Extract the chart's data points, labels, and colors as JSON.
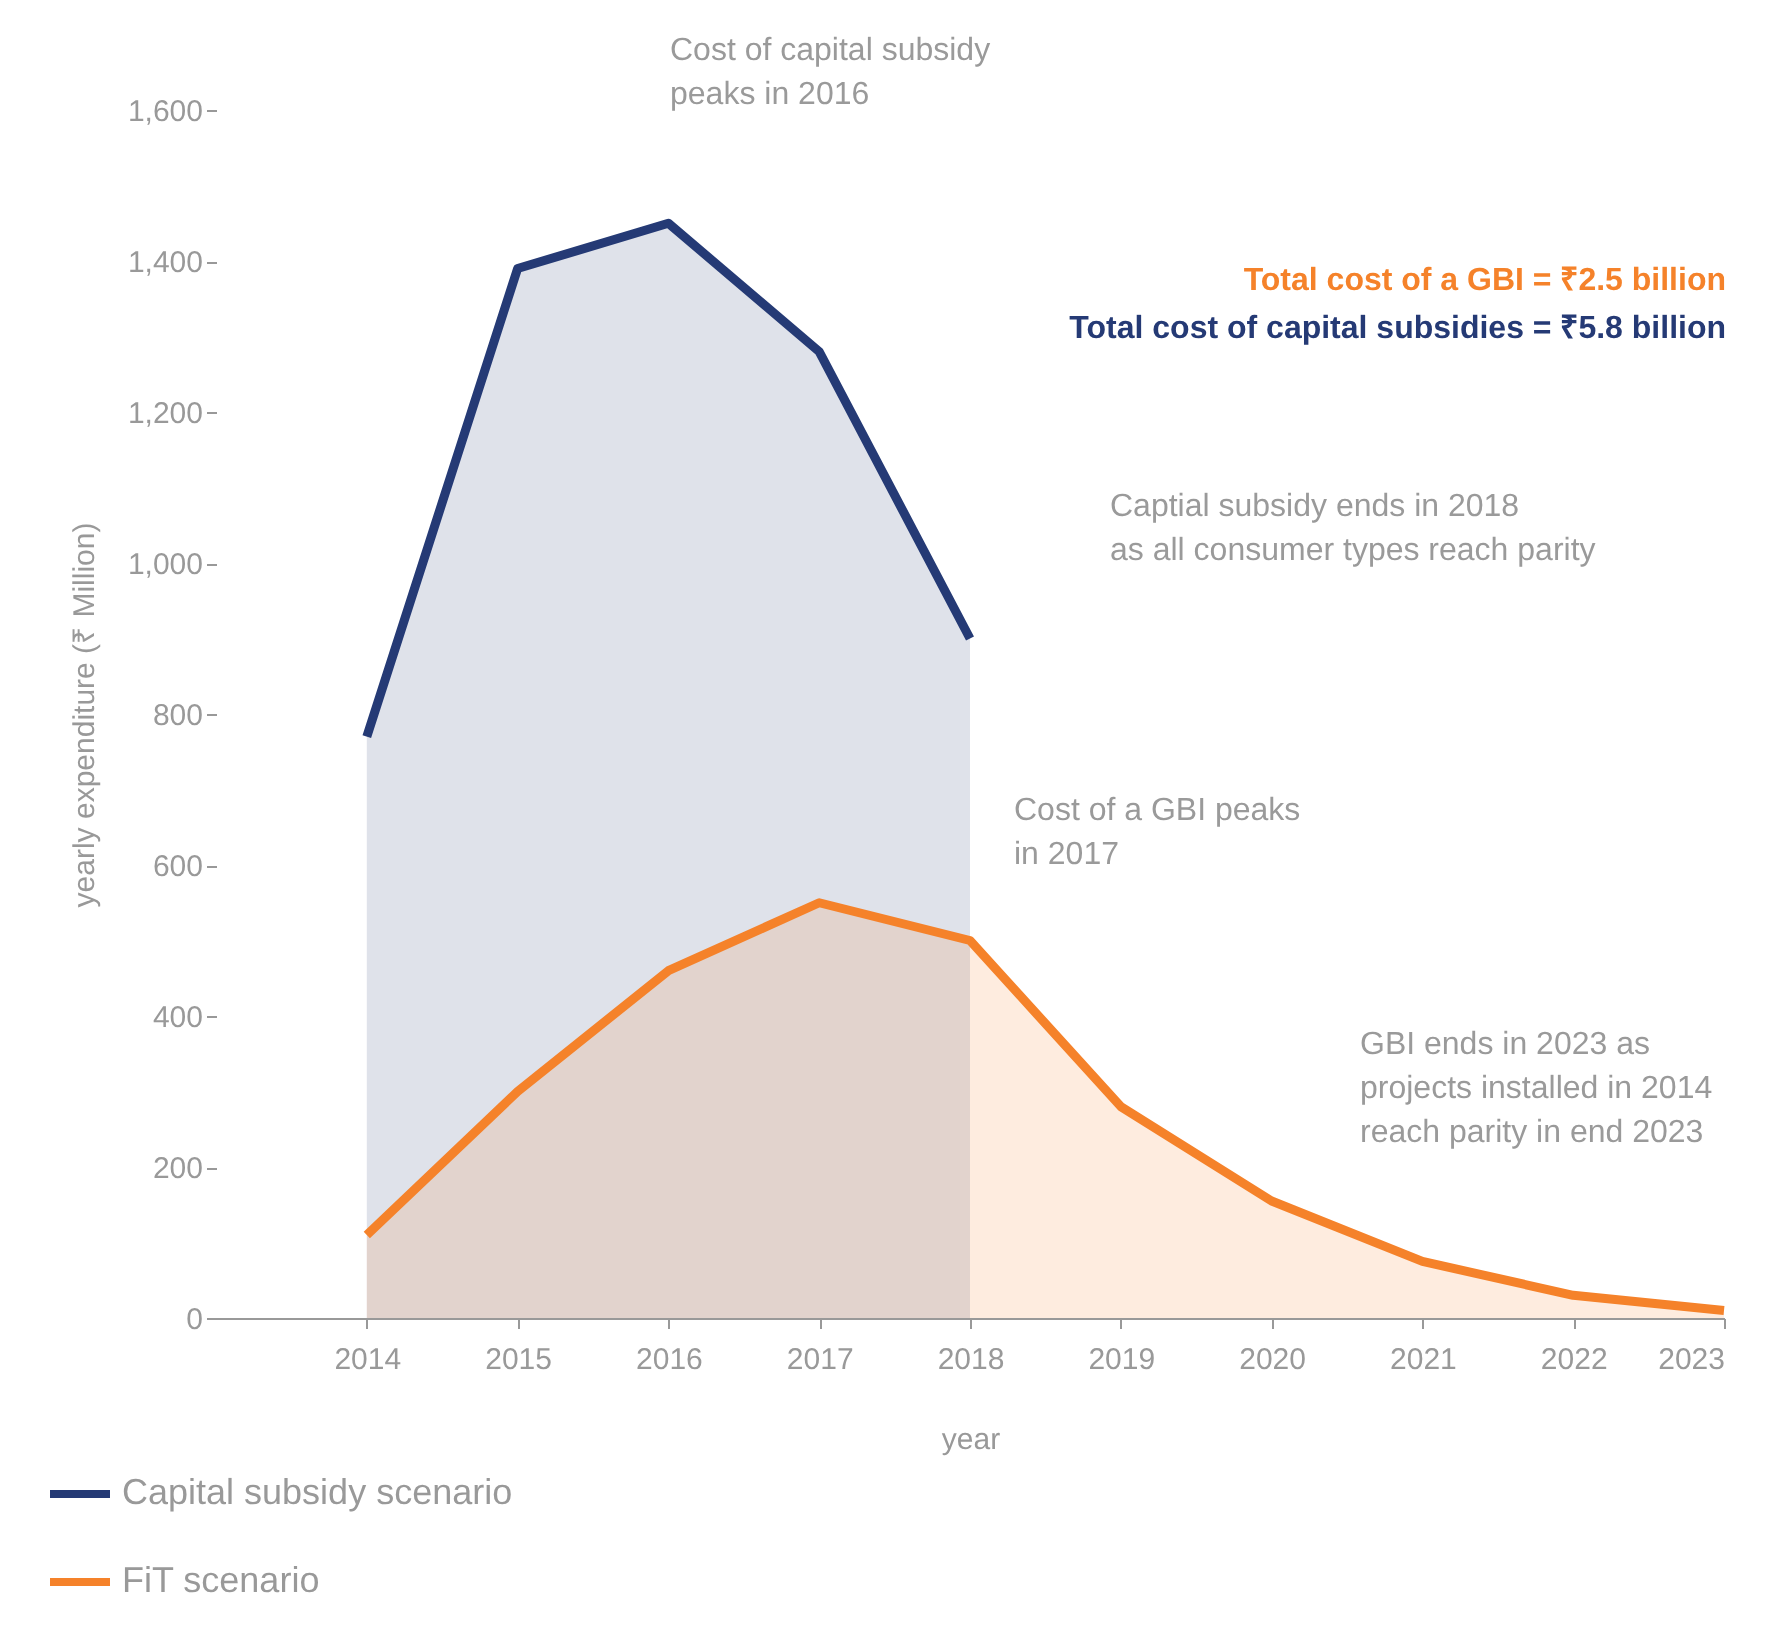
{
  "chart_data": {
    "type": "area",
    "xlabel": "year",
    "ylabel": "yearly expenditure (₹ Million)",
    "x": [
      2014,
      2015,
      2016,
      2017,
      2018,
      2019,
      2020,
      2021,
      2022,
      2023
    ],
    "xlim": [
      2013,
      2023
    ],
    "xticks": [
      2014,
      2015,
      2016,
      2017,
      2018,
      2019,
      2020,
      2021,
      2022,
      2023
    ],
    "ylim": [
      0,
      1600
    ],
    "yticks": [
      0,
      200,
      400,
      600,
      800,
      {
        "value": 1000,
        "label": "1,000"
      },
      {
        "value": 1200,
        "label": "1,200"
      },
      {
        "value": 1400,
        "label": "1,400"
      },
      {
        "value": 1600,
        "label": "1,600"
      }
    ],
    "grid": false,
    "legend": "bottom left",
    "series": [
      {
        "name": "Capital subsidy scenario",
        "color": "#253a75",
        "values": [
          770,
          1390,
          1450,
          1280,
          900,
          null,
          null,
          null,
          null,
          null
        ]
      },
      {
        "name": "FiT scenario",
        "color": "#f5822a",
        "values": [
          110,
          300,
          460,
          550,
          500,
          280,
          155,
          75,
          30,
          10
        ]
      }
    ],
    "annotations": [
      "Cost of capital subsidy\npeaks in 2016",
      "Captial subsidy ends in 2018\nas all consumer types reach parity",
      "Cost of a GBI peaks\nin 2017",
      "GBI ends in 2023 as\nprojects installed in 2014\nreach parity in end 2023",
      "Total cost of a GBI = ₹2.5 billion",
      "Total cost of capital subsidies = ₹5.8 billion"
    ]
  }
}
